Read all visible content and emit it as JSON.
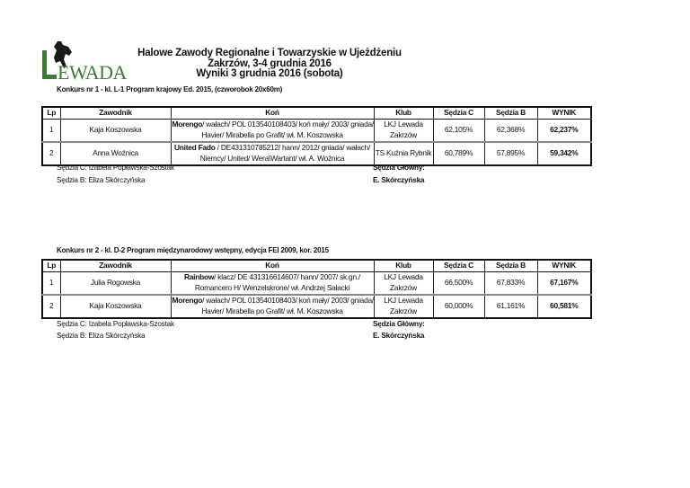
{
  "logo": {
    "text": "LEWADA",
    "color": "#3d7a35"
  },
  "header": {
    "line1": "Halowe Zawody Regionalne i Towarzyskie w Ujeżdżeniu",
    "line2": "Zakrzów, 3-4 grudnia 2016",
    "line3": "Wyniki 3 grudnia 2016 (sobota)"
  },
  "columns": [
    "Lp",
    "Zawodnik",
    "Koń",
    "Klub",
    "Sędzia C",
    "Sędzia B",
    "WYNIK"
  ],
  "competitions": [
    {
      "title": "Konkurs nr 1 - kl. L-1 Program krajowy Ed. 2015, (czworobok 20x60m)",
      "rows": [
        {
          "lp": "1",
          "rider": "Kaja Koszowska",
          "horse_name": "Morengo",
          "horse_l1": "/ wałach/ POL 013540108403/ koń mały/ 2003/ gniada/",
          "horse_l2": "Havier/ Mirabella po Grafit/ wł. M. Koszowska",
          "club_l1": "LKJ Lewada",
          "club_l2": "Zakrzów",
          "c": "62,105%",
          "b": "62,368%",
          "result": "62,237%"
        },
        {
          "lp": "2",
          "rider": "Anna Woźnica",
          "horse_name": "United Fado",
          "horse_l1": " / DE431310785212/ hann/ 2012/ gniada/ wałach/",
          "horse_l2": "Niemcy/ United/ Wera\\Wartant/ wł. A. Woźnica",
          "club_l1": "TS Kuźnia Rybnik",
          "club_l2": "",
          "c": "60,789%",
          "b": "57,895%",
          "result": "59,342%"
        }
      ],
      "judge_c": "Sędzia C: Izabela Popławska-Szostak",
      "judge_b": "Sędzia B: Eliza Skórczyńska",
      "chief_label": "Sędzia Główny:",
      "chief_name": "E. Skórczyńska"
    },
    {
      "title": "Konkurs nr 2 - kl. D-2 Program międzynarodowy wstępny, edycja FEI 2009, kor. 2015",
      "rows": [
        {
          "lp": "1",
          "rider": "Julia Rogowska",
          "horse_name": "Rainbow",
          "horse_l1": "/ klacz/ DE 431316614607/ hann/ 2007/ sk.gn./",
          "horse_l2": "Romancero H/ Wenzelskrone/ wł. Andrzej Sałacki",
          "club_l1": "LKJ Lewada",
          "club_l2": "Zakrzów",
          "c": "66,500%",
          "b": "67,833%",
          "result": "67,167%"
        },
        {
          "lp": "2",
          "rider": "Kaja Koszowska",
          "horse_name": "Morengo",
          "horse_l1": "/ wałach/ POL 013540108403/ koń mały/ 2003/ gniada/",
          "horse_l2": "Havier/ Mirabella po Grafit/ wł. M. Koszowska",
          "club_l1": "LKJ Lewada",
          "club_l2": "Zakrzów",
          "c": "60,000%",
          "b": "61,161%",
          "result": "60,581%"
        }
      ],
      "judge_c": "Sędzia C: Izabela Popławska-Szostak",
      "judge_b": "Sędzia B: Eliza Skórczyńska",
      "chief_label": "Sędzia Główny:",
      "chief_name": "E. Skórczyńska"
    }
  ]
}
